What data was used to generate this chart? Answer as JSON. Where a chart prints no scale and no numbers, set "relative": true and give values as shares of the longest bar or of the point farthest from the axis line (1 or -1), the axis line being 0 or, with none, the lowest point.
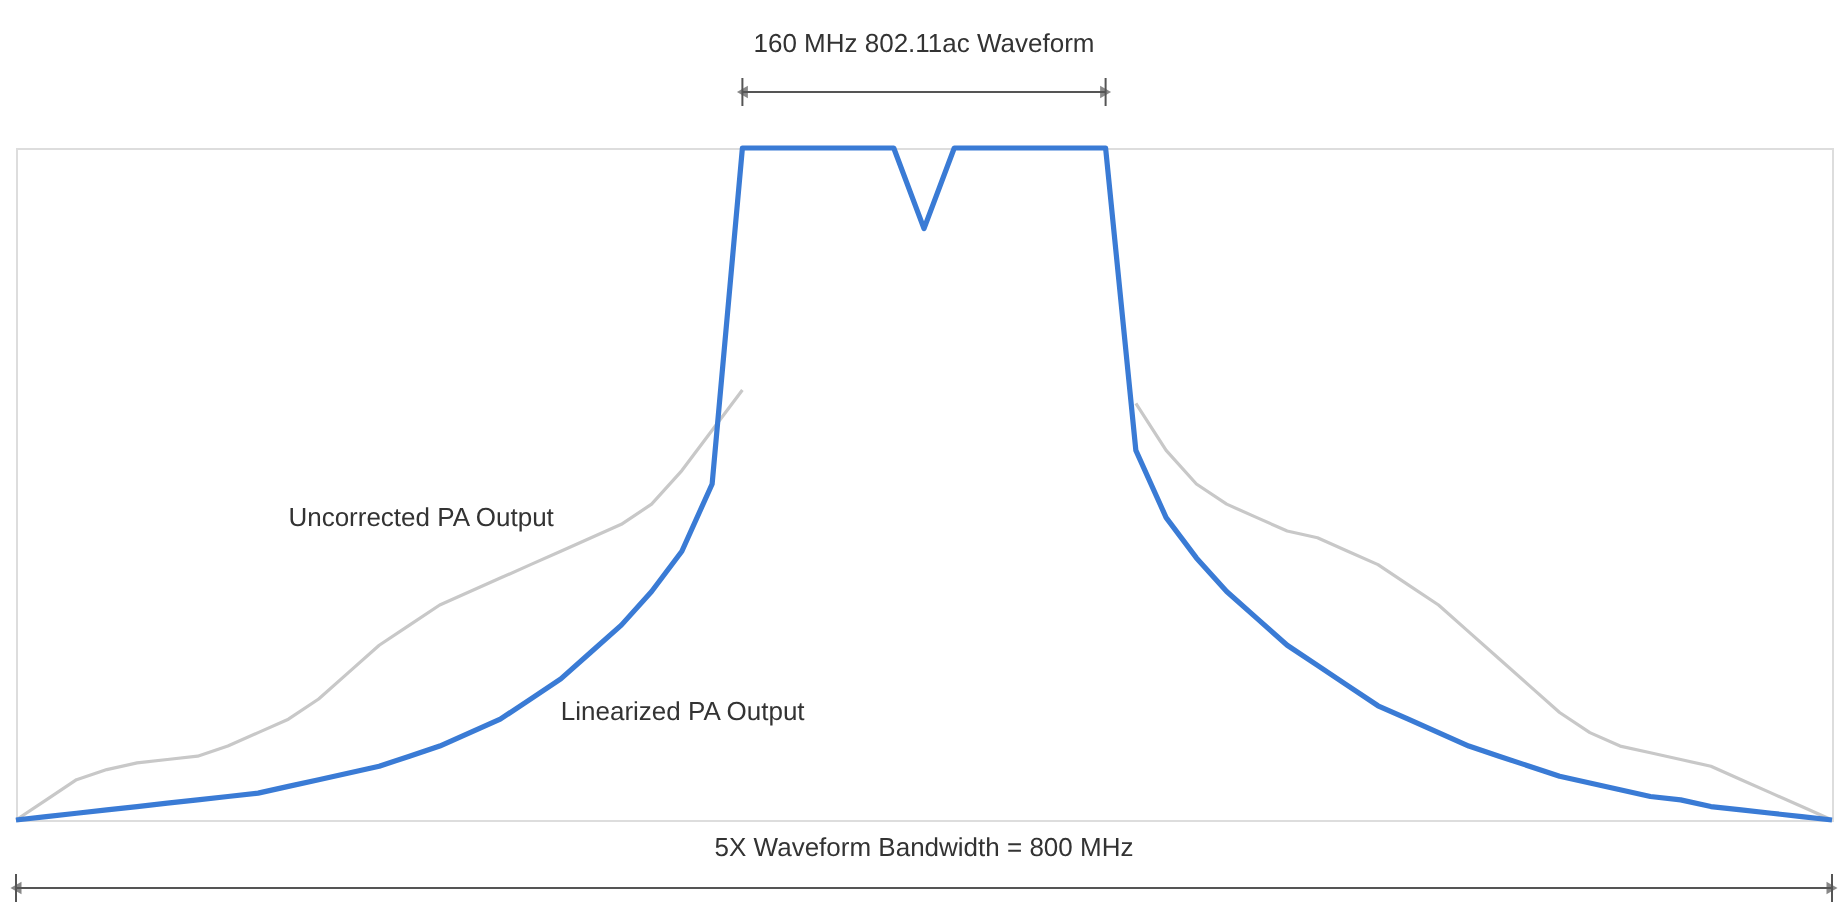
{
  "chart_data": {
    "type": "line",
    "relative": true,
    "categories": [
      null,
      null,
      null,
      null,
      null,
      null,
      null,
      null,
      null,
      null,
      null,
      null,
      null,
      null,
      null,
      null,
      null,
      null,
      null,
      null,
      null,
      null,
      null,
      null,
      null,
      null,
      null,
      null,
      null,
      null,
      null,
      null,
      null,
      null,
      null,
      null,
      null,
      null,
      null,
      null,
      null,
      null,
      null,
      null,
      null,
      null,
      null,
      null,
      null,
      null,
      null,
      null,
      null,
      null,
      null,
      null,
      null,
      null,
      null,
      null,
      null
    ],
    "series": [
      {
        "name": "Uncorrected PA Output",
        "color": "#c8c8c8",
        "values": [
          0,
          0.03,
          0.06,
          0.075,
          0.085,
          0.09,
          0.095,
          0.11,
          0.13,
          0.15,
          0.18,
          0.22,
          0.26,
          0.29,
          0.32,
          0.34,
          0.36,
          0.38,
          0.4,
          0.42,
          0.44,
          0.47,
          0.52,
          0.58,
          0.64,
          null,
          null,
          null,
          null,
          null,
          null,
          null,
          null,
          null,
          null,
          null,
          null,
          0.62,
          0.55,
          0.5,
          0.47,
          0.45,
          0.43,
          0.42,
          0.4,
          0.38,
          0.35,
          0.32,
          0.28,
          0.24,
          0.2,
          0.16,
          0.13,
          0.11,
          0.1,
          0.09,
          0.08,
          0.06,
          0.04,
          0.02,
          0
        ]
      },
      {
        "name": "Linearized PA Output",
        "color": "#3a7bd5",
        "values": [
          0,
          0.005,
          0.01,
          0.015,
          0.02,
          0.025,
          0.03,
          0.035,
          0.04,
          0.05,
          0.06,
          0.07,
          0.08,
          0.095,
          0.11,
          0.13,
          0.15,
          0.18,
          0.21,
          0.25,
          0.29,
          0.34,
          0.4,
          0.5,
          1,
          1,
          1,
          1,
          1,
          1,
          0.88,
          1,
          1,
          1,
          1,
          1,
          1,
          0.55,
          0.45,
          0.39,
          0.34,
          0.3,
          0.26,
          0.23,
          0.2,
          0.17,
          0.15,
          0.13,
          0.11,
          0.095,
          0.08,
          0.065,
          0.055,
          0.045,
          0.035,
          0.03,
          0.02,
          0.015,
          0.01,
          0.005,
          0
        ]
      }
    ],
    "annotations": [
      "160 MHz 802.11ac Waveform",
      "5X Waveform Bandwidth = 800 MHz"
    ]
  }
}
